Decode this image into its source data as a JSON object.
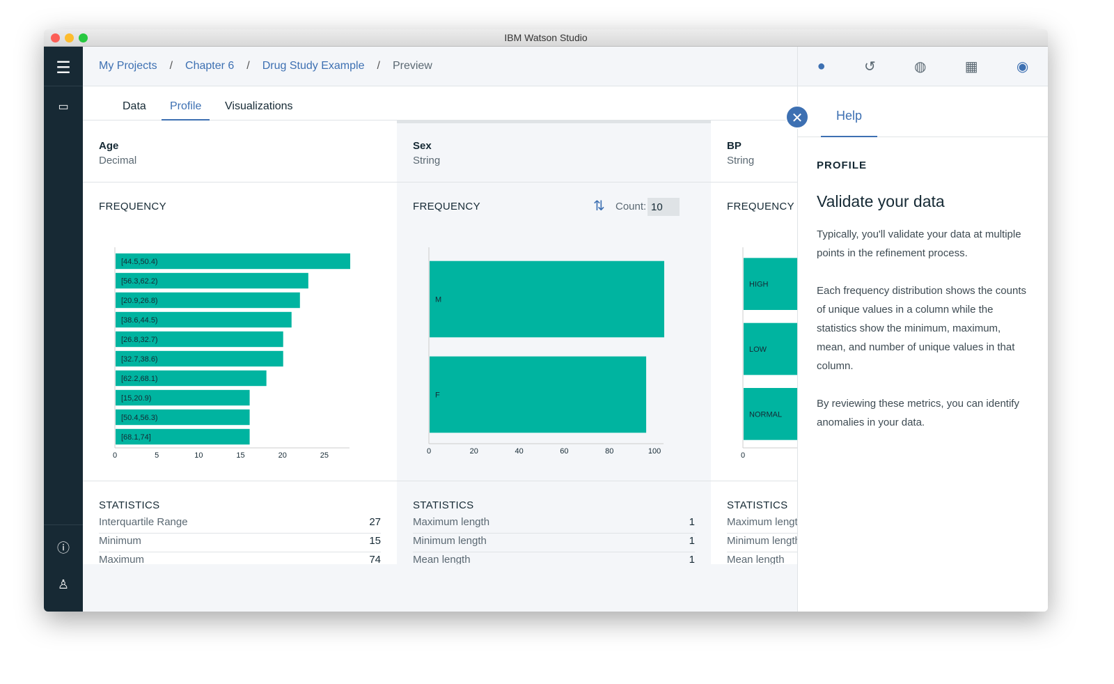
{
  "window": {
    "title": "IBM Watson Studio"
  },
  "breadcrumb": [
    "My Projects",
    "Chapter 6",
    "Drug Study Example",
    "Preview"
  ],
  "tabs": [
    "Data",
    "Profile",
    "Visualizations"
  ],
  "columns": [
    {
      "name": "Age",
      "type": "Decimal",
      "freq_label": "FREQUENCY",
      "stats_label": "STATISTICS",
      "stats": [
        {
          "k": "Interquartile Range",
          "v": "27"
        },
        {
          "k": "Minimum",
          "v": "15"
        },
        {
          "k": "Maximum",
          "v": "74"
        }
      ]
    },
    {
      "name": "Sex",
      "type": "String",
      "freq_label": "FREQUENCY",
      "stats_label": "STATISTICS",
      "count_label": "Count:",
      "count_value": "10",
      "stats": [
        {
          "k": "Maximum length",
          "v": "1"
        },
        {
          "k": "Minimum length",
          "v": "1"
        },
        {
          "k": "Mean length",
          "v": "1"
        }
      ]
    },
    {
      "name": "BP",
      "type": "String",
      "freq_label": "FREQUENCY",
      "stats_label": "STATISTICS",
      "stats": [
        {
          "k": "Maximum length",
          "v": ""
        },
        {
          "k": "Minimum length",
          "v": ""
        },
        {
          "k": "Mean length",
          "v": ""
        }
      ]
    }
  ],
  "chart_data": [
    {
      "type": "bar",
      "orientation": "horizontal",
      "title": "Age frequency",
      "categories": [
        "[44.5,50.4)",
        "[56.3,62.2)",
        "[20.9,26.8)",
        "[38.6,44.5)",
        "[26.8,32.7)",
        "[32.7,38.6)",
        "[62.2,68.1)",
        "[15,20.9)",
        "[50.4,56.3)",
        "[68.1,74]"
      ],
      "values": [
        28,
        23,
        22,
        21,
        20,
        20,
        18,
        16,
        16,
        16
      ],
      "xlim": [
        0,
        28
      ],
      "xticks": [
        0,
        5,
        10,
        15,
        20,
        25
      ]
    },
    {
      "type": "bar",
      "orientation": "horizontal",
      "title": "Sex frequency",
      "categories": [
        "M",
        "F"
      ],
      "values": [
        104,
        96
      ],
      "xlim": [
        0,
        104
      ],
      "xticks": [
        0,
        20,
        40,
        60,
        80,
        100
      ]
    },
    {
      "type": "bar",
      "orientation": "horizontal",
      "title": "BP frequency",
      "categories": [
        "HIGH",
        "LOW",
        "NORMAL"
      ],
      "values": [
        null,
        null,
        null
      ],
      "xticks": [
        0
      ]
    }
  ],
  "help": {
    "tab": "Help",
    "section": "PROFILE",
    "title": "Validate your data",
    "paragraphs": [
      "Typically, you'll validate your data at multiple points in the refinement process.",
      "Each frequency distribution shows the counts of unique values in a column while the statistics show the minimum, maximum, mean, and number of unique values in that column.",
      "By reviewing these metrics, you can identify anomalies in your data."
    ]
  },
  "colors": {
    "bar": "#00b4a0",
    "sidebar": "#172934",
    "accent": "#3d70b2"
  }
}
